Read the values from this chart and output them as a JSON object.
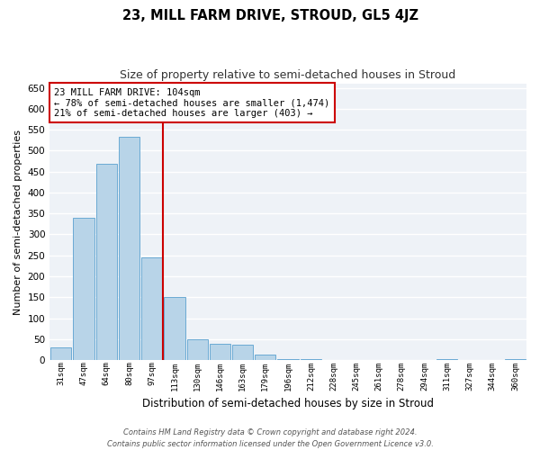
{
  "title": "23, MILL FARM DRIVE, STROUD, GL5 4JZ",
  "subtitle": "Size of property relative to semi-detached houses in Stroud",
  "xlabel": "Distribution of semi-detached houses by size in Stroud",
  "ylabel": "Number of semi-detached properties",
  "categories": [
    "31sqm",
    "47sqm",
    "64sqm",
    "80sqm",
    "97sqm",
    "113sqm",
    "130sqm",
    "146sqm",
    "163sqm",
    "179sqm",
    "196sqm",
    "212sqm",
    "228sqm",
    "245sqm",
    "261sqm",
    "278sqm",
    "294sqm",
    "311sqm",
    "327sqm",
    "344sqm",
    "360sqm"
  ],
  "values": [
    30,
    340,
    468,
    533,
    245,
    150,
    50,
    39,
    37,
    12,
    3,
    2,
    1,
    0,
    0,
    0,
    0,
    2,
    0,
    0,
    2
  ],
  "bar_color": "#b8d4e8",
  "bar_edge_color": "#6aaad4",
  "vline_x": 4.5,
  "vline_color": "#cc0000",
  "annotation_line1": "23 MILL FARM DRIVE: 104sqm",
  "annotation_line2": "← 78% of semi-detached houses are smaller (1,474)",
  "annotation_line3": "21% of semi-detached houses are larger (403) →",
  "annotation_box_color": "#cc0000",
  "ylim": [
    0,
    660
  ],
  "yticks": [
    0,
    50,
    100,
    150,
    200,
    250,
    300,
    350,
    400,
    450,
    500,
    550,
    600,
    650
  ],
  "footer_line1": "Contains HM Land Registry data © Crown copyright and database right 2024.",
  "footer_line2": "Contains public sector information licensed under the Open Government Licence v3.0.",
  "background_color": "#ffffff",
  "plot_background_color": "#eef2f7",
  "grid_color": "#ffffff"
}
